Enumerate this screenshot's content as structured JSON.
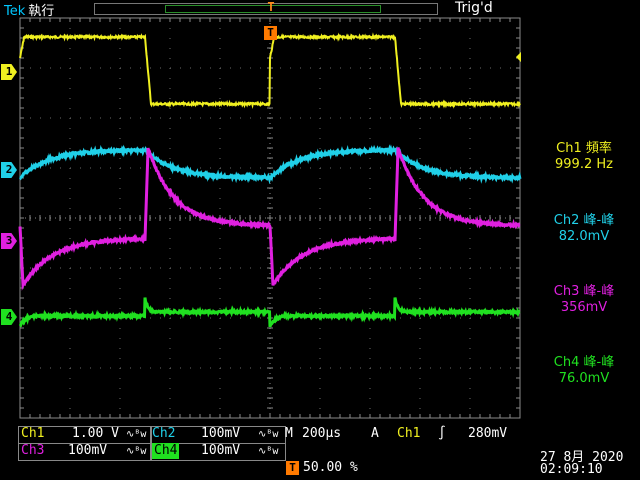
{
  "header": {
    "brand": "Tek",
    "run_state": "執行",
    "trigger_status": "Trig'd",
    "trigger_pos_marker": "T"
  },
  "channels": [
    {
      "id": "1",
      "color": "#f0f020"
    },
    {
      "id": "2",
      "color": "#20d0e8"
    },
    {
      "id": "3",
      "color": "#e020e0"
    },
    {
      "id": "4",
      "color": "#20e020"
    }
  ],
  "measurements": [
    {
      "label": "Ch1 頻率",
      "value": "999.2 Hz",
      "color": "#f0f020"
    },
    {
      "label": "Ch2 峰-峰",
      "value": "82.0mV",
      "color": "#20d0e8"
    },
    {
      "label": "Ch3 峰-峰",
      "value": "356mV",
      "color": "#e020e0"
    },
    {
      "label": "Ch4 峰-峰",
      "value": "76.0mV",
      "color": "#20e020"
    }
  ],
  "scales": {
    "ch1_label": "Ch1",
    "ch1_value": "1.00 V",
    "ch2_label": "Ch2",
    "ch2_value": "100mV",
    "ch3_label": "Ch3",
    "ch3_value": "100mV",
    "ch4_label": "Ch4",
    "ch4_value": "100mV",
    "bw_symbol": "∿ᴮw",
    "timebase_label": "M",
    "timebase_value": "200µs",
    "trigger_label": "A",
    "trigger_source": "Ch1",
    "trigger_slope": "∫",
    "trigger_level": "280mV",
    "trigger_marker": "T",
    "trigger_position": "50.00 %"
  },
  "datetime": {
    "date": "27 8月  2020",
    "time": "02:09:10"
  }
}
